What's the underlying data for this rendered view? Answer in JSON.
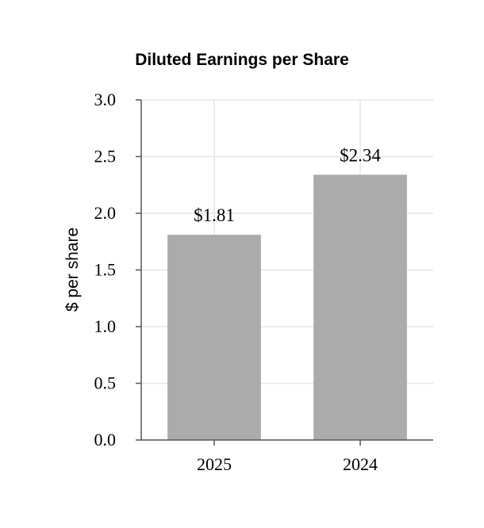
{
  "chart_data": {
    "type": "bar",
    "title": "Diluted Earnings per Share",
    "xlabel": "",
    "ylabel": "$ per share",
    "categories": [
      "2025",
      "2024"
    ],
    "values": [
      1.81,
      2.34
    ],
    "data_labels": [
      "$1.81",
      "$2.34"
    ],
    "ylim": [
      0,
      3.0
    ],
    "yticks": [
      "0.0",
      "0.5",
      "1.0",
      "1.5",
      "2.0",
      "2.5",
      "3.0"
    ],
    "grid": true,
    "bar_color": "#ababab"
  }
}
